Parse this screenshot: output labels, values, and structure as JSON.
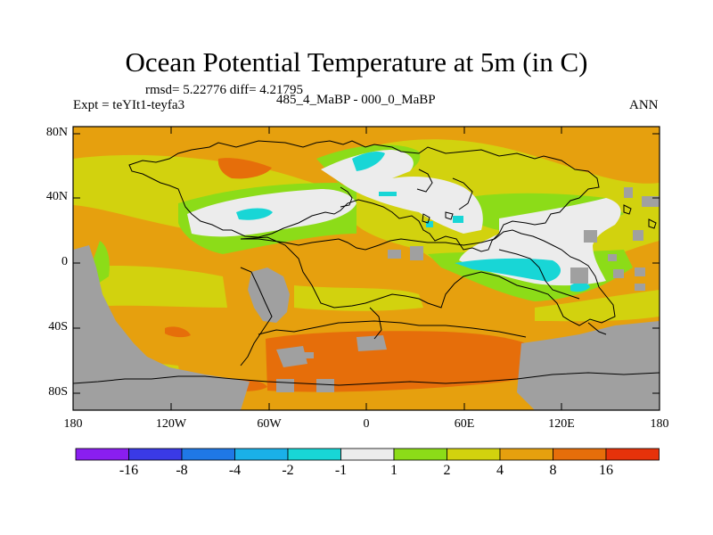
{
  "title": "Ocean Potential Temperature at 5m (in C)",
  "stats": "rmsd= 5.22776 diff= 4.21795",
  "experiment": "Expt = teYIt1-teyfa3",
  "case_label": "485_4_MaBP - 000_0_MaBP",
  "season": "ANN",
  "y_axis_labels": [
    "80N",
    "40N",
    "0",
    "40S",
    "80S"
  ],
  "x_axis_labels": [
    "180",
    "120W",
    "60W",
    "0",
    "60E",
    "120E",
    "180"
  ],
  "colorbar": {
    "labels": [
      "-16",
      "-8",
      "-4",
      "-2",
      "-1",
      "1",
      "2",
      "4",
      "8",
      "16"
    ],
    "colors": [
      "#8a1ef0",
      "#3a3ae6",
      "#1f78e6",
      "#1ab0e8",
      "#18d6d6",
      "#ececec",
      "#8cdc18",
      "#d2d20e",
      "#e6a00e",
      "#e66e0a",
      "#e6320a"
    ]
  },
  "palette": {
    "land": "#a0a0a0",
    "near_zero": "#ececec",
    "warm_1_2": "#8cdc18",
    "warm_2_4": "#d2d20e",
    "warm_4_8": "#e6a00e",
    "warm_8_16": "#e66e0a",
    "cool_-2_-1": "#18d6d6"
  }
}
